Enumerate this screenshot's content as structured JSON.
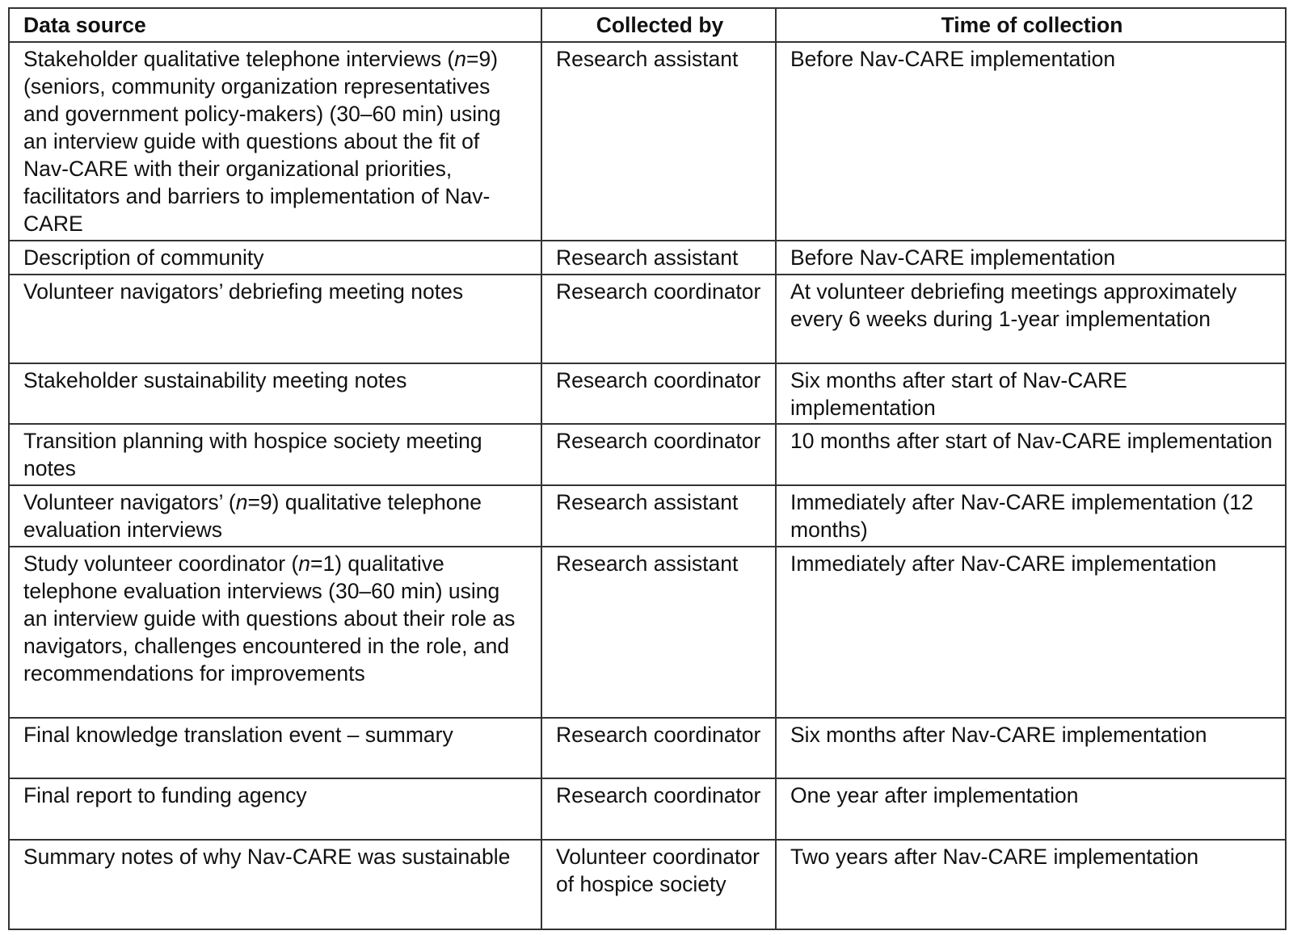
{
  "table": {
    "columns": [
      "Data source",
      "Collected by",
      "Time of collection"
    ],
    "rows": [
      [
        [
          "Stakeholder qualitative telephone interviews (",
          {
            "em": "n"
          },
          "=9) (seniors, community organization representatives and government policy-makers) (30–60 min) using an interview guide with questions about the fit of Nav-CARE with their organizational priorities, facilitators and barriers to implementation of Nav-CARE"
        ],
        "Research assistant",
        "Before Nav-CARE implementation"
      ],
      [
        "Description of community",
        "Research assistant",
        "Before Nav-CARE implementation"
      ],
      [
        "Volunteer navigators’ debriefing meeting notes",
        "Research coordinator",
        "At volunteer debriefing meetings approximately every 6 weeks during 1-year implementation"
      ],
      [
        "Stakeholder sustainability meeting notes",
        "Research coordinator",
        "Six months after start of Nav-CARE implementation"
      ],
      [
        "Transition planning with hospice society meeting notes",
        "Research coordinator",
        "10 months after start of Nav-CARE implementation"
      ],
      [
        [
          "Volunteer navigators’ (",
          {
            "em": "n"
          },
          "=9) qualitative telephone evaluation interviews"
        ],
        "Research assistant",
        "Immediately after Nav-CARE implementation (12 months)"
      ],
      [
        [
          "Study volunteer coordinator (",
          {
            "em": "n"
          },
          "=1) qualitative telephone evaluation interviews (30–60 min) using an interview guide with questions about their role as navigators, challenges encountered in the role, and recommendations for improvements"
        ],
        "Research assistant",
        "Immediately after Nav-CARE implementation"
      ],
      [
        "Final knowledge translation event – summary",
        "Research coordinator",
        "Six months after Nav-CARE implementation"
      ],
      [
        "Final report to funding agency",
        "Research coordinator",
        "One year after implementation"
      ],
      [
        "Summary notes of why Nav-CARE was sustainable",
        "Volunteer coordinator of hospice society",
        "Two years after Nav-CARE implementation"
      ]
    ]
  }
}
